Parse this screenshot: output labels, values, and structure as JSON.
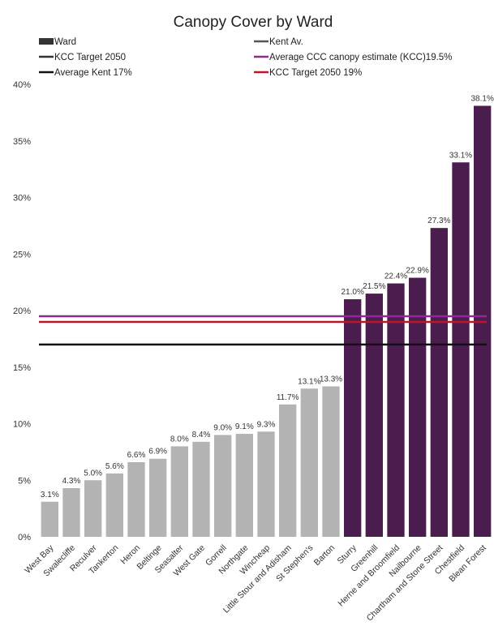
{
  "chart_data": {
    "type": "bar",
    "title": "Canopy Cover by Ward",
    "xlabel": "",
    "ylabel": "",
    "ylim": [
      0,
      40
    ],
    "y_ticks": [
      "0%",
      "5%",
      "10%",
      "15%",
      "20%",
      "25%",
      "30%",
      "35%",
      "40%"
    ],
    "grid": false,
    "legend_position": "top",
    "categories": [
      "West Bay",
      "Swalecliffe",
      "Reculver",
      "Tankerton",
      "Heron",
      "Beltinge",
      "Seasalter",
      "West Gate",
      "Gorrell",
      "Northgate",
      "Wincheap",
      "Little Stour and Adisham",
      "St Stephen's",
      "Barton",
      "Sturry",
      "Greenhill",
      "Herne and Broomfield",
      "Nailbourne",
      "Chartham and Stone Street",
      "Chestfield",
      "Blean Forest"
    ],
    "values": [
      3.1,
      4.3,
      5.0,
      5.6,
      6.6,
      6.9,
      8.0,
      8.4,
      9.0,
      9.1,
      9.3,
      11.7,
      13.1,
      13.3,
      21.0,
      21.5,
      22.4,
      22.9,
      27.3,
      33.1,
      38.1
    ],
    "data_labels": [
      "3.1%",
      "4.3%",
      "5.0%",
      "5.6%",
      "6.6%",
      "6.9%",
      "8.0%",
      "8.4%",
      "9.0%",
      "9.1%",
      "9.3%",
      "11.7%",
      "13.1%",
      "13.3%",
      "21.0%",
      "21.5%",
      "22.4%",
      "22.9%",
      "27.3%",
      "33.1%",
      "38.1%"
    ],
    "highlight_from_index": 14,
    "colors": {
      "low": "#b3b3b3",
      "high": "#4b1d4e"
    },
    "legend": [
      {
        "label": "Ward",
        "marker": "bar",
        "color": "#333333"
      },
      {
        "label": "Kent Av.",
        "marker": "line",
        "color": "#555555"
      },
      {
        "label": "KCC Target 2050",
        "marker": "line",
        "color": "#333333"
      },
      {
        "label": "Average CCC canopy estimate (KCC)19.5%",
        "marker": "line",
        "color": "#8e2a96"
      },
      {
        "label": "Average Kent 17%",
        "marker": "line",
        "color": "#111111"
      },
      {
        "label": "KCC Target 2050 19%",
        "marker": "line",
        "color": "#c0142a"
      }
    ],
    "reference_lines": [
      {
        "value": 19.5,
        "color": "#8e2a96"
      },
      {
        "value": 19,
        "color": "#c0142a"
      },
      {
        "value": 17,
        "color": "#111111"
      }
    ]
  }
}
